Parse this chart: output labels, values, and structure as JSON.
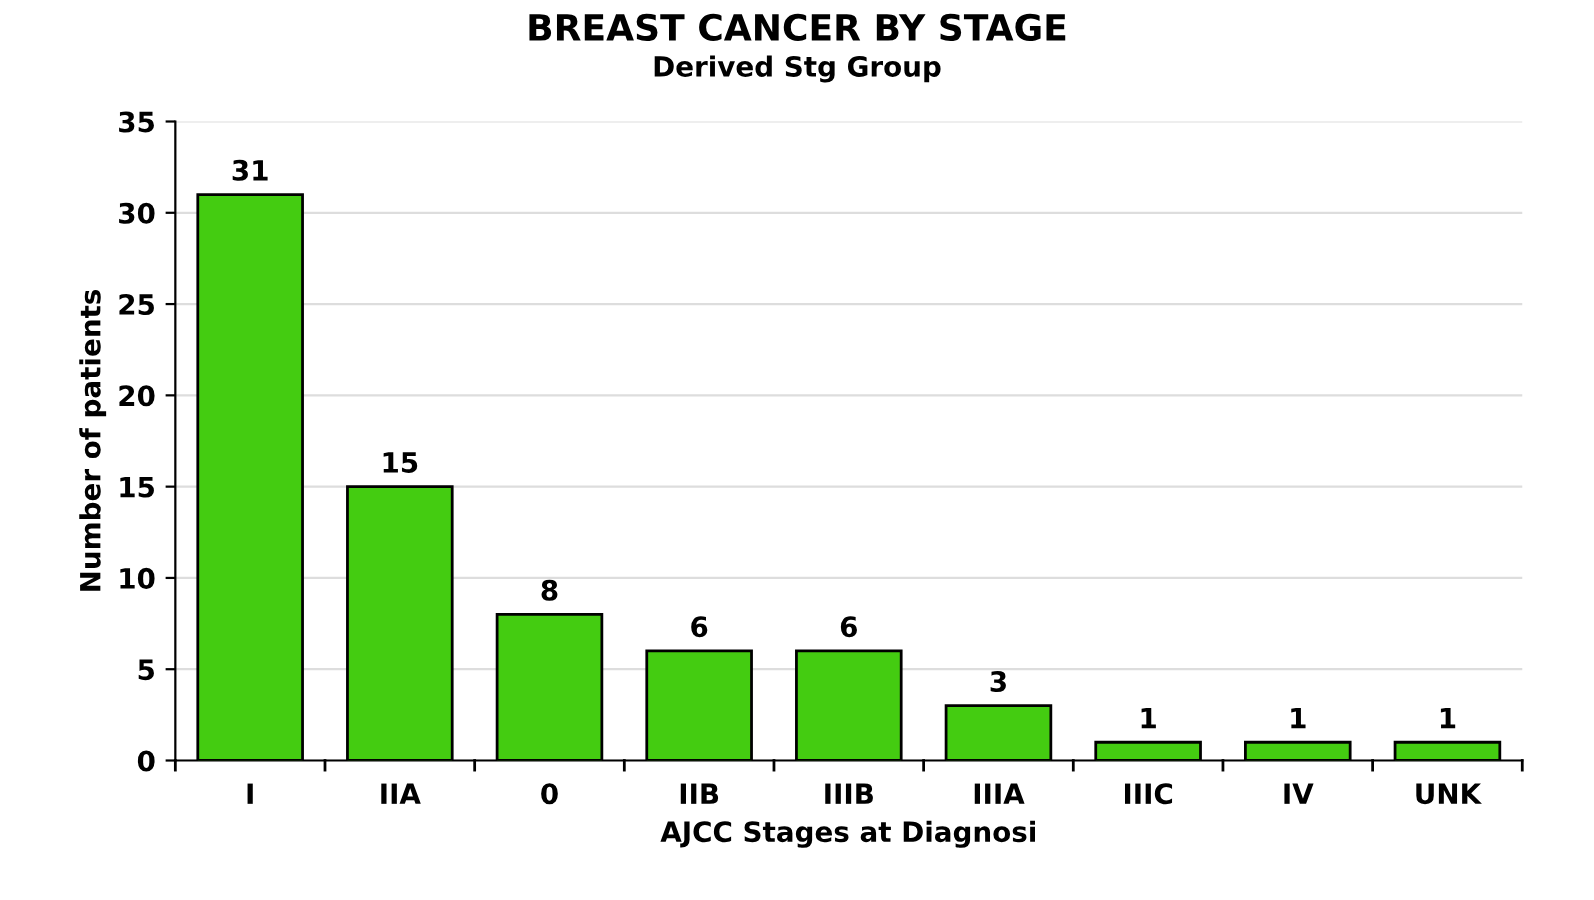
{
  "chart_data": {
    "type": "bar",
    "title": "BREAST CANCER BY STAGE",
    "subtitle": "Derived Stg Group",
    "xlabel": "AJCC Stages at Diagnosi",
    "ylabel": "Number of patients",
    "categories": [
      "I",
      "IIA",
      "0",
      "IIB",
      "IIIB",
      "IIIA",
      "IIIC",
      "IV",
      "UNK"
    ],
    "values": [
      31,
      15,
      8,
      6,
      6,
      3,
      1,
      1,
      1
    ],
    "color": "#44cc11",
    "ylim": [
      0,
      35
    ],
    "yticks": [
      0,
      5,
      10,
      15,
      20,
      25,
      30,
      35
    ],
    "grid": "y",
    "data_labels": true
  }
}
